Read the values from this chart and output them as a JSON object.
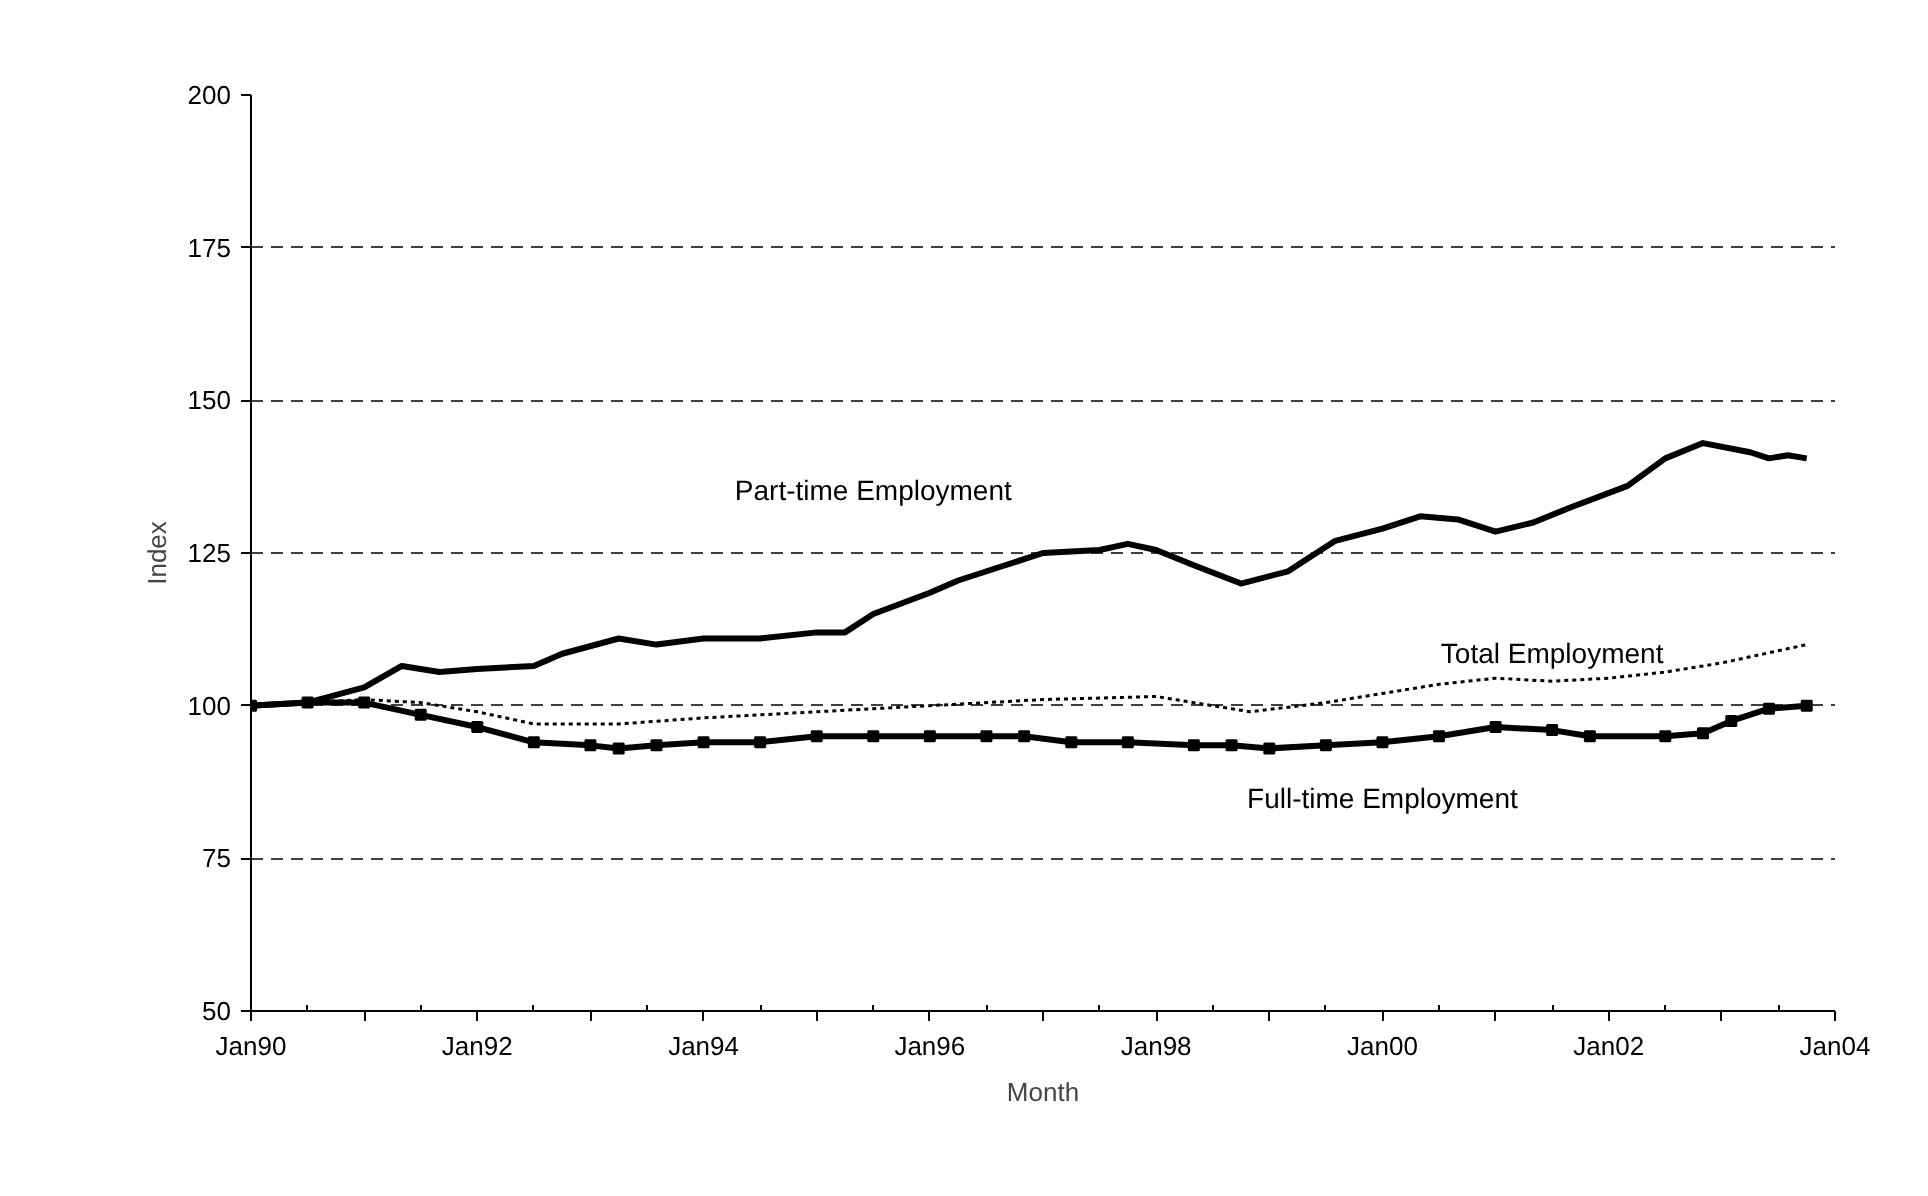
{
  "chart_data": {
    "type": "line",
    "xlabel": "Month",
    "ylabel": "Index",
    "xlim": [
      "1990-01",
      "2004-01"
    ],
    "ylim": [
      50,
      200
    ],
    "xticks": [
      {
        "value": "1990-01",
        "label": "Jan90"
      },
      {
        "value": "1991-01",
        "label": null
      },
      {
        "value": "1992-01",
        "label": "Jan92"
      },
      {
        "value": "1993-01",
        "label": null
      },
      {
        "value": "1994-01",
        "label": "Jan94"
      },
      {
        "value": "1995-01",
        "label": null
      },
      {
        "value": "1996-01",
        "label": "Jan96"
      },
      {
        "value": "1997-01",
        "label": null
      },
      {
        "value": "1998-01",
        "label": "Jan98"
      },
      {
        "value": "1999-01",
        "label": null
      },
      {
        "value": "2000-01",
        "label": "Jan00"
      },
      {
        "value": "2001-01",
        "label": null
      },
      {
        "value": "2002-01",
        "label": "Jan02"
      },
      {
        "value": "2003-01",
        "label": null
      },
      {
        "value": "2004-01",
        "label": "Jan04"
      }
    ],
    "yticks": [
      50,
      75,
      100,
      125,
      150,
      175,
      200
    ],
    "grid": "y",
    "legend": false,
    "series": [
      {
        "name": "Part-time Employment",
        "color": "#000000",
        "line_style": "solid",
        "marker": "none",
        "x": [
          "1990-01",
          "1990-07",
          "1991-01",
          "1991-05",
          "1991-09",
          "1992-01",
          "1992-07",
          "1992-10",
          "1993-04",
          "1993-08",
          "1994-01",
          "1994-07",
          "1995-01",
          "1995-04",
          "1995-07",
          "1996-01",
          "1996-04",
          "1996-08",
          "1997-01",
          "1997-07",
          "1997-10",
          "1998-01",
          "1998-05",
          "1998-10",
          "1999-03",
          "1999-08",
          "2000-01",
          "2000-05",
          "2000-09",
          "2001-01",
          "2001-05",
          "2001-09",
          "2002-03",
          "2002-07",
          "2002-11",
          "2003-04",
          "2003-06",
          "2003-08",
          "2003-10"
        ],
        "values": [
          100,
          100.5,
          103,
          106.5,
          105.5,
          106,
          106.5,
          108.5,
          111,
          110,
          111,
          111,
          112,
          112,
          115,
          118.5,
          120.5,
          122.5,
          125,
          125.5,
          126.5,
          125.5,
          123,
          120,
          122,
          127,
          129,
          131,
          130.5,
          128.5,
          130,
          132.5,
          136,
          140.5,
          143,
          141.5,
          140.5,
          141,
          140.5
        ]
      },
      {
        "name": "Total Employment",
        "color": "#000000",
        "line_style": "dotted",
        "marker": "none",
        "x": [
          "1990-01",
          "1991-01",
          "1991-07",
          "1992-01",
          "1992-07",
          "1993-04",
          "1994-01",
          "1995-01",
          "1996-01",
          "1997-01",
          "1998-01",
          "1998-07",
          "1998-11",
          "1999-07",
          "2000-01",
          "2000-07",
          "2001-01",
          "2001-07",
          "2002-01",
          "2002-07",
          "2003-01",
          "2003-10"
        ],
        "values": [
          100,
          101,
          100.5,
          99,
          97,
          97,
          98,
          99,
          100,
          101,
          101.5,
          100,
          99,
          100.5,
          102,
          103.5,
          104.5,
          104,
          104.5,
          105.5,
          107,
          110
        ]
      },
      {
        "name": "Full-time Employment",
        "color": "#000000",
        "line_style": "solid",
        "marker": "square",
        "x": [
          "1990-01",
          "1990-07",
          "1991-01",
          "1991-07",
          "1992-01",
          "1992-07",
          "1993-01",
          "1993-04",
          "1993-08",
          "1994-01",
          "1994-07",
          "1995-01",
          "1995-07",
          "1996-01",
          "1996-07",
          "1996-11",
          "1997-04",
          "1997-10",
          "1998-05",
          "1998-09",
          "1999-01",
          "1999-07",
          "2000-01",
          "2000-07",
          "2001-01",
          "2001-07",
          "2001-11",
          "2002-07",
          "2002-11",
          "2003-02",
          "2003-06",
          "2003-10"
        ],
        "values": [
          100,
          100.5,
          100.5,
          98.5,
          96.5,
          94,
          93.5,
          93,
          93.5,
          94,
          94,
          95,
          95,
          95,
          95,
          95,
          94,
          94,
          93.5,
          93.5,
          93,
          93.5,
          94,
          95,
          96.5,
          96,
          95,
          95,
          95.5,
          97.5,
          99.5,
          100
        ]
      }
    ]
  }
}
